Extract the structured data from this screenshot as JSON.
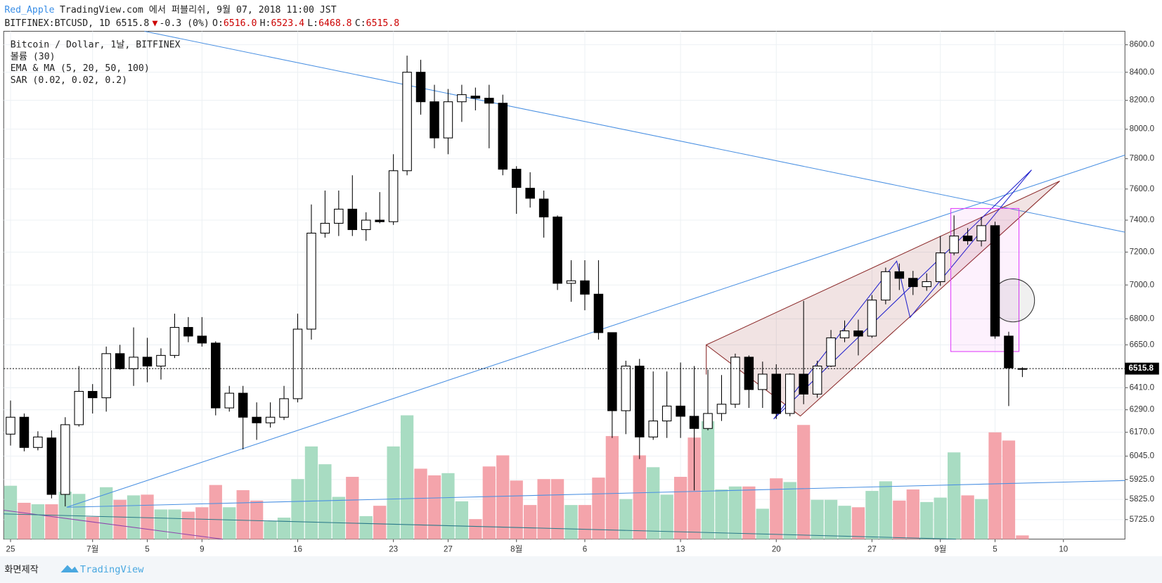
{
  "header": {
    "user": "Red_Apple",
    "published": "TradingView.com 에서 퍼블리쉬, 9월 07, 2018 11:00 JST",
    "symbol": "BITFINEX:BTCUSD, 1D 6515.8",
    "arrow": "▼",
    "change": "-0.3 (0%)",
    "o_label": "O:",
    "o": "6516.0",
    "h_label": "H:",
    "h": "6523.4",
    "l_label": "L:",
    "l": "6468.8",
    "c_label": "C:",
    "c": "6515.8"
  },
  "footer": {
    "made": "화면제작",
    "brand": "TradingView"
  },
  "chart_data": {
    "type": "candlestick",
    "indicators": [
      "Bitcoin / Dollar, 1날, BITFINEX",
      "볼륨 (30)",
      "EMA & MA (5, 20, 50, 100)",
      "SAR (0.02, 0.02, 0.2)"
    ],
    "categories": [
      "25",
      null,
      null,
      null,
      null,
      null,
      "7월",
      null,
      null,
      null,
      "5",
      null,
      null,
      null,
      "9",
      null,
      null,
      null,
      null,
      null,
      null,
      "16",
      null,
      null,
      null,
      null,
      null,
      null,
      "23",
      null,
      null,
      null,
      "27",
      null,
      null,
      null,
      null,
      "8월",
      null,
      null,
      null,
      null,
      "6",
      null,
      null,
      null,
      null,
      null,
      null,
      "13",
      null,
      null,
      null,
      null,
      null,
      null,
      "20",
      null,
      null,
      null,
      null,
      null,
      null,
      "27",
      null,
      null,
      null,
      null,
      "9월",
      null,
      null,
      null,
      "5",
      null,
      null,
      null,
      null,
      "10",
      null,
      null,
      null,
      null
    ],
    "open": [
      6160,
      6250,
      6090,
      6140,
      5850,
      6210,
      6390,
      6355,
      6600,
      6515,
      6580,
      6530,
      6590,
      6750,
      6700,
      6660,
      6300,
      6380,
      6250,
      6220,
      6250,
      6350,
      6740,
      7318,
      7380,
      7470,
      7340,
      7400,
      7390,
      7720,
      8400,
      8190,
      7940,
      8190,
      8230,
      8215,
      8180,
      7730,
      7605,
      7535,
      7420,
      7010,
      7025,
      6945,
      6720,
      6285,
      6530,
      6145,
      6230,
      6310,
      6255,
      6190,
      6270,
      6320,
      6580,
      6400,
      6485,
      6270,
      6485,
      6375,
      6530,
      6690,
      6730,
      6700,
      6910,
      7080,
      7040,
      6990,
      7020,
      7195,
      7300,
      7270,
      7365,
      6700,
      6516.0,
      null,
      null,
      null,
      null,
      null,
      null,
      null
    ],
    "high": [
      6340,
      6270,
      6175,
      6180,
      6250,
      6530,
      6430,
      6640,
      6650,
      6750,
      6690,
      6630,
      6830,
      6810,
      6810,
      6670,
      6420,
      6420,
      6330,
      6330,
      6420,
      6830,
      7500,
      7590,
      7590,
      7690,
      7450,
      7580,
      7830,
      8520,
      8490,
      8310,
      8280,
      8310,
      8290,
      8310,
      8240,
      7750,
      7710,
      7590,
      7430,
      7150,
      7150,
      7150,
      6720,
      6560,
      6570,
      6500,
      6500,
      6550,
      6530,
      6510,
      6480,
      6600,
      6590,
      6555,
      6540,
      6490,
      6905,
      6560,
      6735,
      6790,
      6795,
      6940,
      7105,
      7130,
      7085,
      7070,
      7300,
      7430,
      7350,
      7420,
      7390,
      6725,
      6523.4,
      null,
      null,
      null,
      null,
      null,
      null,
      null
    ],
    "low": [
      6100,
      6070,
      6075,
      5830,
      5790,
      6200,
      6270,
      6280,
      6510,
      6420,
      6440,
      6455,
      6575,
      6665,
      6640,
      6260,
      6280,
      6080,
      6130,
      6195,
      6235,
      6330,
      6680,
      7290,
      7300,
      7300,
      7270,
      7380,
      7370,
      7690,
      8100,
      7870,
      7830,
      8050,
      8130,
      7870,
      7690,
      7440,
      7480,
      7290,
      6970,
      6900,
      6850,
      6680,
      6140,
      6160,
      6030,
      6130,
      6140,
      6140,
      5870,
      6180,
      6230,
      6300,
      6300,
      6300,
      6240,
      6255,
      6320,
      6355,
      6525,
      6665,
      6590,
      6690,
      6885,
      6970,
      6940,
      6965,
      6995,
      7180,
      7245,
      7235,
      6685,
      6310,
      6468.8,
      null,
      null,
      null,
      null,
      null,
      null,
      null
    ],
    "close": [
      6250,
      6090,
      6145,
      5850,
      6210,
      6390,
      6355,
      6600,
      6515,
      6580,
      6530,
      6590,
      6750,
      6700,
      6660,
      6300,
      6380,
      6250,
      6220,
      6250,
      6350,
      6740,
      7318,
      7380,
      7470,
      7340,
      7400,
      7390,
      7720,
      8400,
      8190,
      7940,
      8190,
      8240,
      8215,
      8180,
      7730,
      7610,
      7540,
      7420,
      7010,
      7025,
      6945,
      6720,
      6285,
      6530,
      6145,
      6230,
      6310,
      6255,
      6190,
      6270,
      6320,
      6580,
      6400,
      6485,
      6270,
      6485,
      6375,
      6530,
      6690,
      6730,
      6700,
      6910,
      7080,
      7040,
      6990,
      7020,
      7195,
      7300,
      7270,
      7365,
      6700,
      6520,
      6515.8,
      null,
      null,
      null,
      null,
      null,
      null,
      null
    ],
    "volume": [
      72,
      49,
      47,
      47,
      64,
      61,
      30,
      70,
      53,
      59,
      60,
      40,
      40,
      37,
      43,
      73,
      43,
      66,
      52,
      24,
      29,
      81,
      125,
      101,
      57,
      84,
      31,
      45,
      125,
      167,
      95,
      86,
      89,
      51,
      27,
      98,
      113,
      79,
      46,
      81,
      81,
      46,
      46,
      83,
      139,
      54,
      113,
      97,
      60,
      84,
      137,
      159,
      67,
      71,
      71,
      41,
      82,
      77,
      154,
      53,
      53,
      45,
      43,
      65,
      78,
      52,
      67,
      50,
      56,
      117,
      59,
      54,
      144,
      133,
      5,
      null,
      null,
      null,
      null,
      null,
      null,
      null
    ],
    "up_color": "#ffffff",
    "down_color": "#000000",
    "volume_up_color": "#a8dcc2",
    "volume_down_color": "#f4a4ab",
    "log_scale": true,
    "grid": true,
    "ylim": [
      5630,
      8700
    ],
    "yticks": [
      {
        "value": 5725,
        "label": "5725.0"
      },
      {
        "value": 5825,
        "label": "5825.0"
      },
      {
        "value": 5925,
        "label": "5925.0"
      },
      {
        "value": 6045,
        "label": "6045.0"
      },
      {
        "value": 6170,
        "label": "6170.0"
      },
      {
        "value": 6290,
        "label": "6290.0"
      },
      {
        "value": 6410,
        "label": "6410.0"
      },
      {
        "value": 6650,
        "label": "6650.0"
      },
      {
        "value": 6800,
        "label": "6800.0"
      },
      {
        "value": 7000,
        "label": "7000.0"
      },
      {
        "value": 7200,
        "label": "7200.0"
      },
      {
        "value": 7400,
        "label": "7400.0"
      },
      {
        "value": 7600,
        "label": "7600.0"
      },
      {
        "value": 7800,
        "label": "7800.0"
      },
      {
        "value": 8000,
        "label": "8000.0"
      },
      {
        "value": 8200,
        "label": "8200.0"
      },
      {
        "value": 8400,
        "label": "8400.0"
      },
      {
        "value": 8600,
        "label": "8600.0"
      }
    ],
    "last_price": 6515.8
  }
}
